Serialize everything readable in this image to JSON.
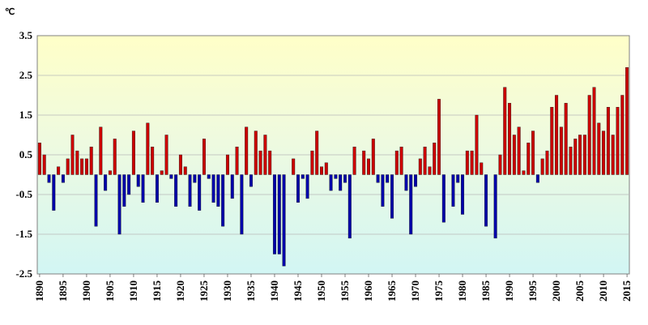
{
  "chart_data": {
    "type": "bar",
    "title": "",
    "xlabel": "",
    "ylabel": "",
    "unit_label": "℃",
    "ylim": [
      -2.5,
      3.5
    ],
    "yticks": [
      3.5,
      2.5,
      1.5,
      0.5,
      -0.5,
      -1.5,
      -2.5
    ],
    "xticks": [
      1890,
      1895,
      1900,
      1905,
      1910,
      1915,
      1920,
      1925,
      1930,
      1935,
      1940,
      1945,
      1950,
      1955,
      1960,
      1965,
      1970,
      1975,
      1980,
      1985,
      1990,
      1995,
      2000,
      2005,
      2010,
      2015
    ],
    "grid": true,
    "positive_color": "#cc0000",
    "negative_color": "#0000aa",
    "x": [
      1890,
      1891,
      1892,
      1893,
      1894,
      1895,
      1896,
      1897,
      1898,
      1899,
      1900,
      1901,
      1902,
      1903,
      1904,
      1905,
      1906,
      1907,
      1908,
      1909,
      1910,
      1911,
      1912,
      1913,
      1914,
      1915,
      1916,
      1917,
      1918,
      1919,
      1920,
      1921,
      1922,
      1923,
      1924,
      1925,
      1926,
      1927,
      1928,
      1929,
      1930,
      1931,
      1932,
      1933,
      1934,
      1935,
      1936,
      1937,
      1938,
      1939,
      1940,
      1941,
      1942,
      1943,
      1944,
      1945,
      1946,
      1947,
      1948,
      1949,
      1950,
      1951,
      1952,
      1953,
      1954,
      1955,
      1956,
      1957,
      1958,
      1959,
      1960,
      1961,
      1962,
      1963,
      1964,
      1965,
      1966,
      1967,
      1968,
      1969,
      1970,
      1971,
      1972,
      1973,
      1974,
      1975,
      1976,
      1977,
      1978,
      1979,
      1980,
      1981,
      1982,
      1983,
      1984,
      1985,
      1986,
      1987,
      1988,
      1989,
      1990,
      1991,
      1992,
      1993,
      1994,
      1995,
      1996,
      1997,
      1998,
      1999,
      2000,
      2001,
      2002,
      2003,
      2004,
      2005,
      2006,
      2007,
      2008,
      2009,
      2010,
      2011,
      2012,
      2013,
      2014,
      2015
    ],
    "values": [
      0.8,
      0.5,
      -0.2,
      -0.9,
      0.2,
      -0.2,
      0.4,
      1.0,
      0.6,
      0.4,
      0.4,
      0.7,
      -1.3,
      1.2,
      -0.4,
      0.1,
      0.9,
      -1.5,
      -0.8,
      -0.5,
      1.1,
      -0.3,
      -0.7,
      1.3,
      0.7,
      -0.7,
      0.1,
      1.0,
      -0.1,
      -0.8,
      0.5,
      0.2,
      -0.8,
      -0.2,
      -0.9,
      0.9,
      -0.1,
      -0.7,
      -0.8,
      -1.3,
      0.5,
      -0.6,
      0.7,
      -1.5,
      1.2,
      -0.3,
      1.1,
      0.6,
      1.0,
      0.6,
      -2.0,
      -2.0,
      -2.3,
      0.0,
      0.4,
      -0.7,
      -0.1,
      -0.6,
      0.6,
      1.1,
      0.2,
      0.3,
      -0.4,
      -0.1,
      -0.4,
      -0.2,
      -1.6,
      0.7,
      0.0,
      0.6,
      0.4,
      0.9,
      -0.2,
      -0.8,
      -0.2,
      -1.1,
      0.6,
      0.7,
      -0.4,
      -1.5,
      -0.3,
      0.4,
      0.7,
      0.2,
      0.8,
      1.9,
      -1.2,
      0.0,
      -0.8,
      -0.2,
      -1.0,
      0.6,
      0.6,
      1.5,
      0.3,
      -1.3,
      0.0,
      -1.6,
      0.5,
      2.2,
      1.8,
      1.0,
      1.2,
      0.1,
      0.8,
      1.1,
      -0.2,
      0.4,
      0.6,
      1.7,
      2.0,
      1.2,
      1.8,
      0.7,
      0.9,
      1.0,
      1.0,
      2.0,
      2.2,
      1.3,
      1.1,
      1.7,
      1.0,
      1.7,
      2.0,
      2.7
    ]
  }
}
